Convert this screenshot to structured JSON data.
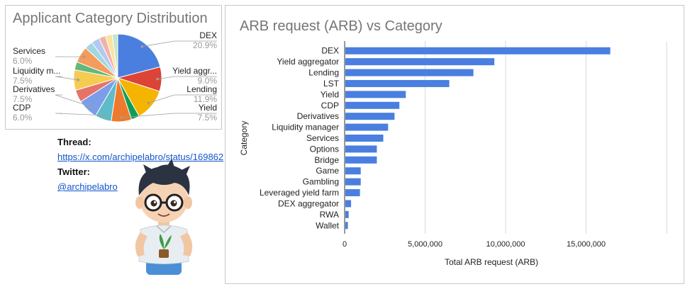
{
  "links": {
    "thread_label": "Thread:",
    "thread_url": "https://x.com/archipelabro/status/169862",
    "twitter_label": "Twitter:",
    "twitter_handle": "@archipelabro"
  },
  "chart_data": [
    {
      "type": "pie",
      "title": "Applicant Category Distribution",
      "slices": [
        {
          "label": "DEX",
          "percent": 20.9,
          "value_text": "20.9%",
          "color": "#4a7fe0",
          "labeled": true
        },
        {
          "label": "Yield aggr...",
          "percent": 9.0,
          "value_text": "9.0%",
          "color": "#db4437",
          "labeled": true
        },
        {
          "label": "Lending",
          "percent": 11.9,
          "value_text": "11.9%",
          "color": "#f4b400",
          "labeled": true
        },
        {
          "label": "",
          "percent": 3.0,
          "value_text": "",
          "color": "#0f9d58",
          "labeled": false
        },
        {
          "label": "Yield",
          "percent": 7.5,
          "value_text": "7.5%",
          "color": "#ee7b2d",
          "labeled": true
        },
        {
          "label": "CDP",
          "percent": 6.0,
          "value_text": "6.0%",
          "color": "#5cbcc7",
          "labeled": true
        },
        {
          "label": "Derivatives",
          "percent": 7.5,
          "value_text": "7.5%",
          "color": "#7c9ee8",
          "labeled": true
        },
        {
          "label": "",
          "percent": 4.5,
          "value_text": "",
          "color": "#e57368",
          "labeled": false
        },
        {
          "label": "Liquidity m...",
          "percent": 7.5,
          "value_text": "7.5%",
          "color": "#f6cb52",
          "labeled": true
        },
        {
          "label": "",
          "percent": 3.0,
          "value_text": "",
          "color": "#62b87b",
          "labeled": false
        },
        {
          "label": "Services",
          "percent": 6.0,
          "value_text": "6.0%",
          "color": "#f59c5c",
          "labeled": true
        },
        {
          "label": "",
          "percent": 3.0,
          "value_text": "",
          "color": "#9fd8de",
          "labeled": false
        },
        {
          "label": "",
          "percent": 3.0,
          "value_text": "",
          "color": "#b4c8f2",
          "labeled": false
        },
        {
          "label": "",
          "percent": 2.5,
          "value_text": "",
          "color": "#f1b2ab",
          "labeled": false
        },
        {
          "label": "",
          "percent": 2.5,
          "value_text": "",
          "color": "#fbe3a0",
          "labeled": false
        },
        {
          "label": "",
          "percent": 2.0,
          "value_text": "",
          "color": "#c7e5c8",
          "labeled": false
        }
      ]
    },
    {
      "type": "bar",
      "orientation": "horizontal",
      "title": "ARB request (ARB) vs Category",
      "xlabel": "Total ARB request (ARB)",
      "ylabel": "Category",
      "bar_color": "#4a7fe0",
      "xlim": [
        0,
        20000000
      ],
      "xticks": [
        0,
        5000000,
        10000000,
        15000000
      ],
      "xtick_labels": [
        "0",
        "5,000,000",
        "10,000,000",
        "15,000,000"
      ],
      "grid": true,
      "categories": [
        "DEX",
        "Yield aggregator",
        "Lending",
        "LST",
        "Yield",
        "CDP",
        "Derivatives",
        "Liquidity manager",
        "Services",
        "Options",
        "Bridge",
        "Game",
        "Gambling",
        "Leveraged yield farm",
        "DEX aggregator",
        "RWA",
        "Wallet"
      ],
      "values": [
        16500000,
        9300000,
        8000000,
        6500000,
        3800000,
        3400000,
        3100000,
        2700000,
        2400000,
        2000000,
        2000000,
        1000000,
        1000000,
        950000,
        400000,
        250000,
        200000
      ]
    }
  ]
}
